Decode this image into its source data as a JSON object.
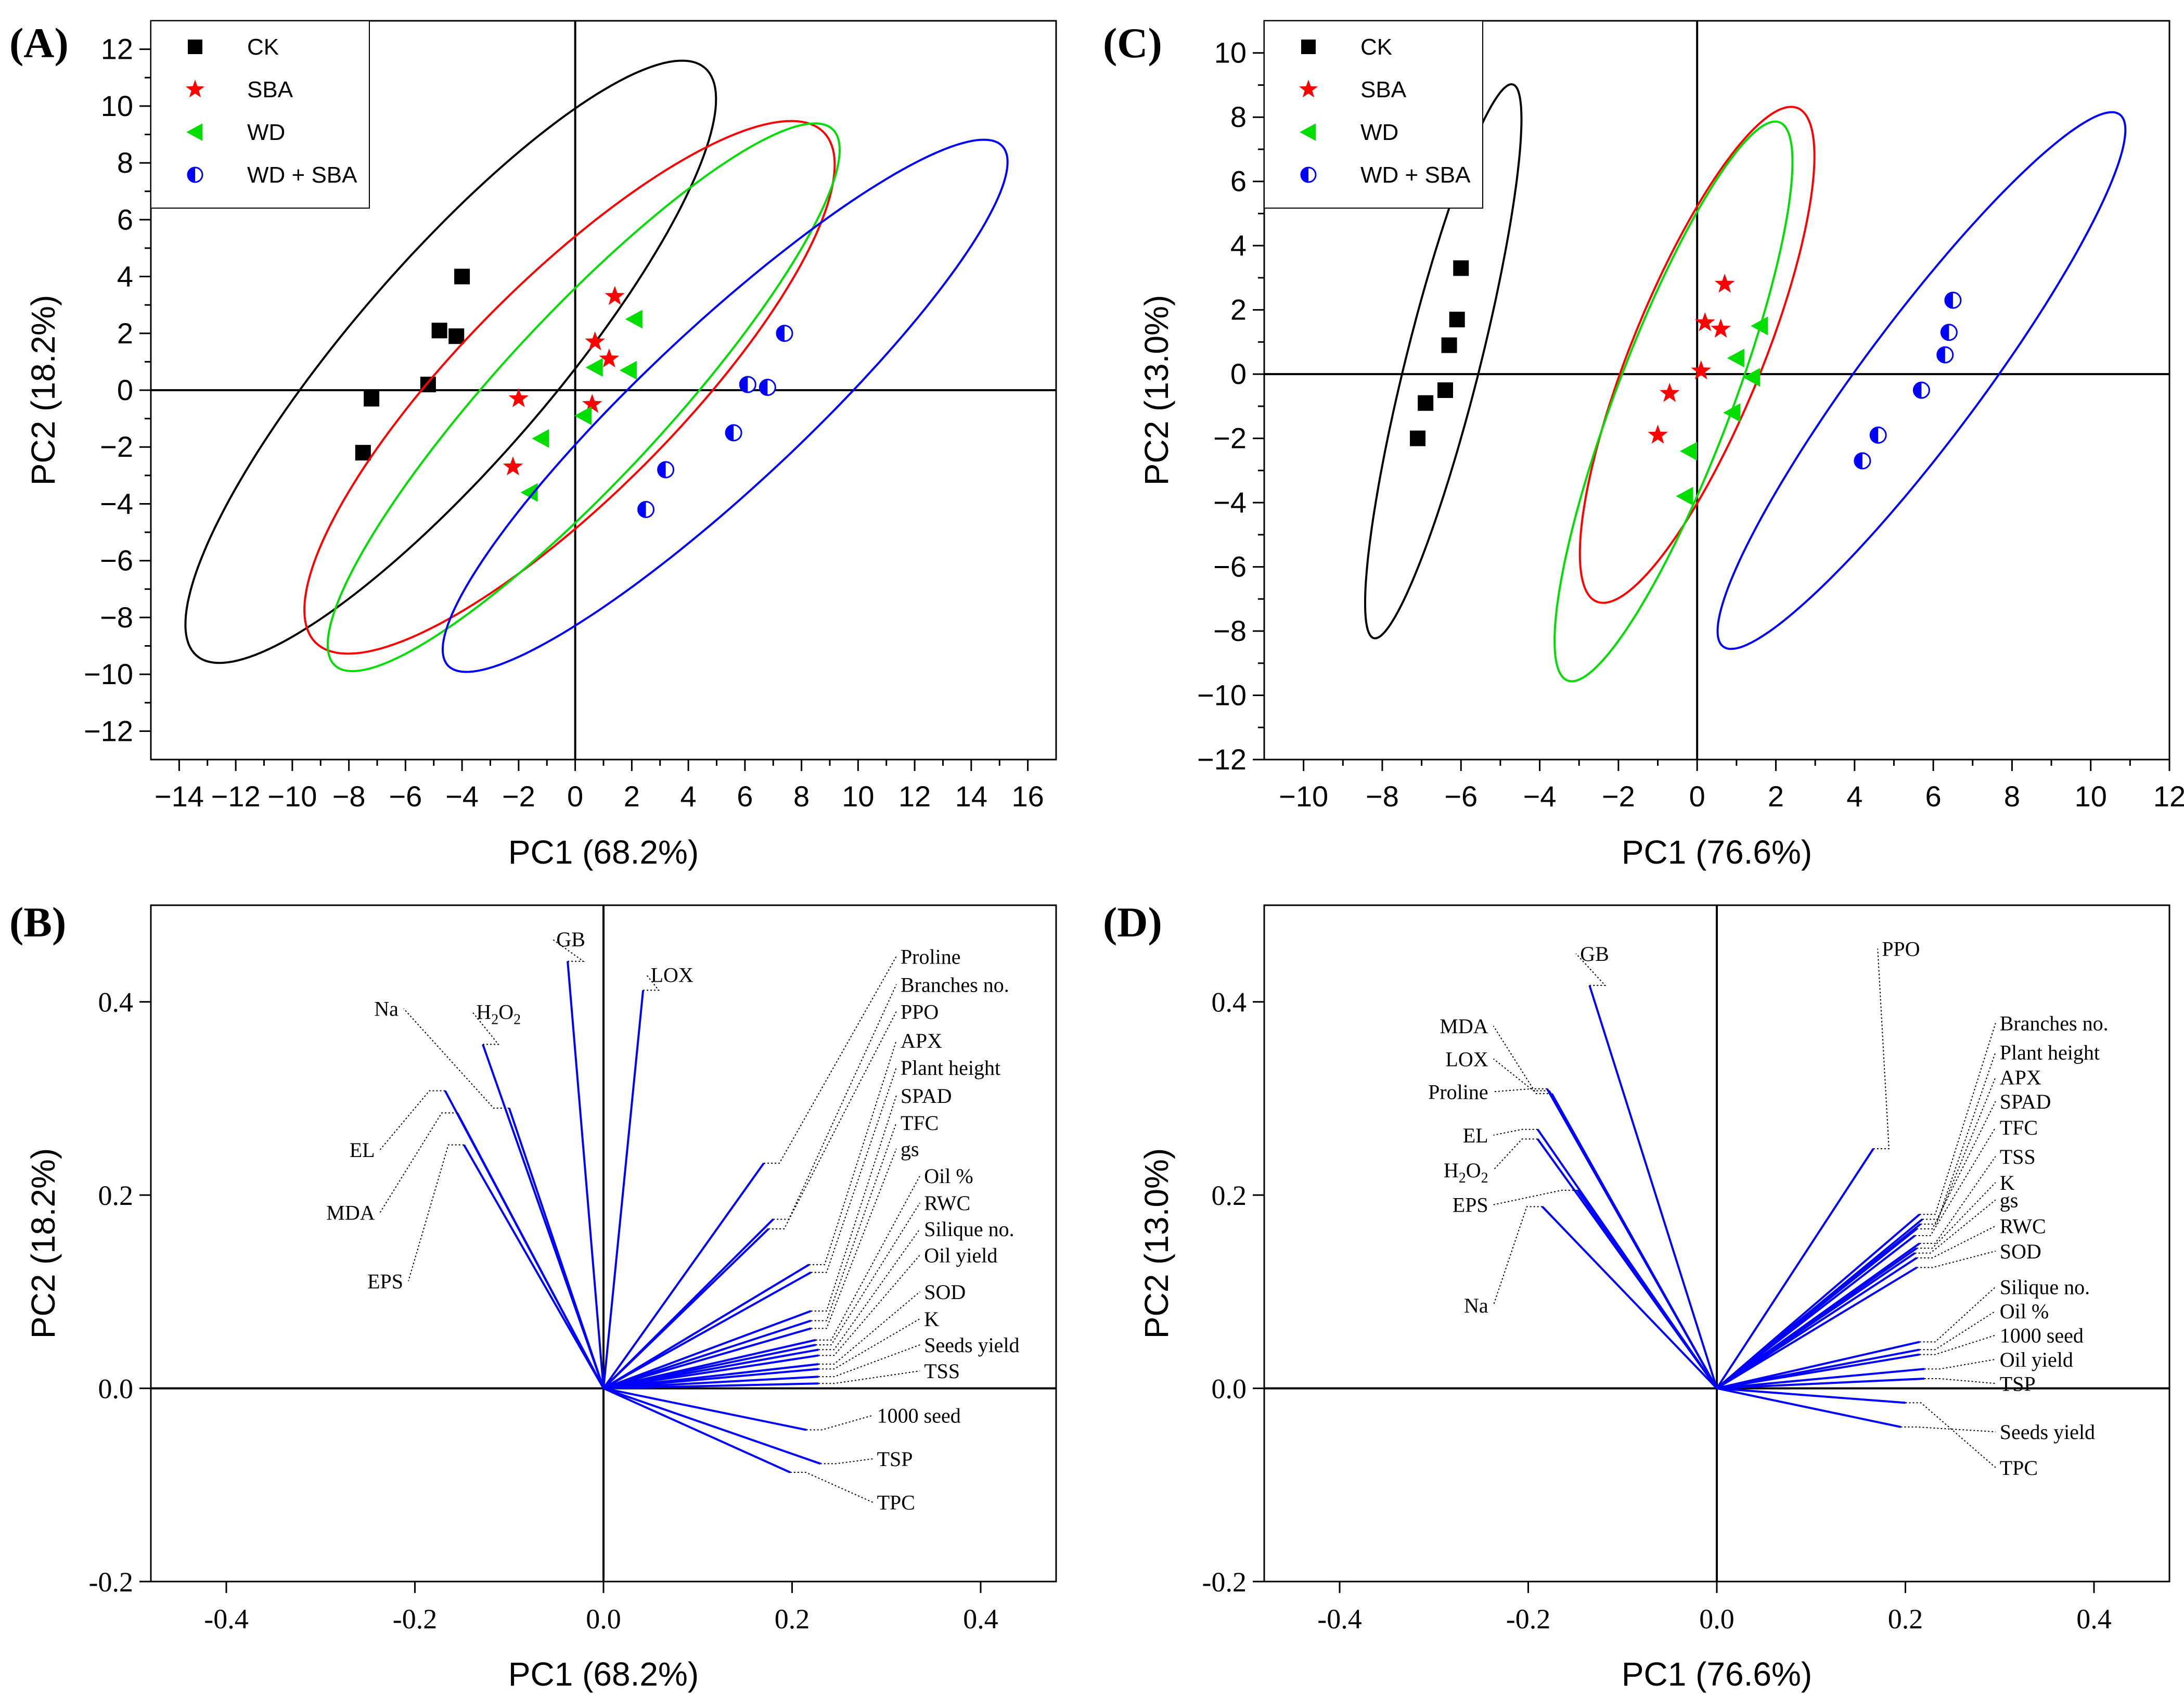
{
  "chart_data": [
    {
      "panel": "(A)",
      "type": "scatter",
      "xlabel": "PC1 (68.2%)",
      "ylabel": "PC2 (18.2%)",
      "xlim": [
        -15,
        17
      ],
      "ylim": [
        -13,
        13
      ],
      "xticks": [
        -14,
        -12,
        -10,
        -8,
        -6,
        -4,
        -2,
        0,
        2,
        4,
        6,
        8,
        10,
        12,
        14,
        16
      ],
      "yticks": [
        -12,
        -10,
        -8,
        -6,
        -4,
        -2,
        0,
        2,
        4,
        6,
        8,
        10,
        12
      ],
      "tick_labels_x": [
        "−14",
        "−12",
        "−10",
        "−8",
        "−6",
        "−4",
        "−2",
        "0",
        "2",
        "4",
        "6",
        "8",
        "10",
        "12",
        "14",
        "16"
      ],
      "tick_labels_y": [
        "−12",
        "−10",
        "−8",
        "−6",
        "−4",
        "−2",
        "0",
        "2",
        "4",
        "6",
        "8",
        "10",
        "12"
      ],
      "legend_position": "top-left",
      "series": [
        {
          "name": "CK",
          "color": "#000000",
          "marker": "square",
          "points": [
            [
              -7.5,
              -2.2
            ],
            [
              -7.2,
              -0.3
            ],
            [
              -5.2,
              0.2
            ],
            [
              -4.8,
              2.1
            ],
            [
              -4.2,
              1.9
            ],
            [
              -4.0,
              4.0
            ]
          ],
          "ellipse": {
            "center": [
              -4.4,
              1.0
            ],
            "angle_deg": 49,
            "semi_major": 13.7,
            "semi_minor": 3.55
          }
        },
        {
          "name": "SBA",
          "color": "#ff0000",
          "marker": "star",
          "points": [
            [
              -2.2,
              -2.7
            ],
            [
              -2.0,
              -0.3
            ],
            [
              0.6,
              -0.5
            ],
            [
              0.7,
              1.7
            ],
            [
              1.2,
              1.1
            ],
            [
              1.4,
              3.3
            ]
          ],
          "ellipse": {
            "center": [
              -0.2,
              0.1
            ],
            "angle_deg": 45,
            "semi_major": 12.7,
            "semi_minor": 3.8
          }
        },
        {
          "name": "WD",
          "color": "#00dd00",
          "marker": "triangle-left",
          "points": [
            [
              -1.6,
              -3.6
            ],
            [
              -1.2,
              -1.7
            ],
            [
              0.3,
              -0.9
            ],
            [
              0.7,
              0.8
            ],
            [
              1.9,
              0.7
            ],
            [
              2.1,
              2.5
            ]
          ],
          "ellipse": {
            "center": [
              0.3,
              -0.25
            ],
            "angle_deg": 47,
            "semi_major": 12.9,
            "semi_minor": 2.9
          }
        },
        {
          "name": "WD + SBA",
          "color": "#0000ff",
          "marker": "half-circle",
          "points": [
            [
              2.5,
              -4.2
            ],
            [
              3.2,
              -2.8
            ],
            [
              5.6,
              -1.5
            ],
            [
              6.1,
              0.2
            ],
            [
              6.8,
              0.1
            ],
            [
              7.4,
              2.0
            ]
          ],
          "ellipse": {
            "center": [
              5.3,
              -0.55
            ],
            "angle_deg": 43,
            "semi_major": 13.4,
            "semi_minor": 2.8
          }
        }
      ]
    },
    {
      "panel": "(C)",
      "type": "scatter",
      "xlabel": "PC1 (76.6%)",
      "ylabel": "PC2 (13.0%)",
      "xlim": [
        -11,
        12
      ],
      "ylim": [
        -12,
        11
      ],
      "xticks": [
        -10,
        -8,
        -6,
        -4,
        -2,
        0,
        2,
        4,
        6,
        8,
        10,
        12
      ],
      "yticks": [
        -12,
        -10,
        -8,
        -6,
        -4,
        -2,
        0,
        2,
        4,
        6,
        8,
        10
      ],
      "tick_labels_x": [
        "−10",
        "−8",
        "−6",
        "−4",
        "−2",
        "0",
        "2",
        "4",
        "6",
        "8",
        "10",
        "12"
      ],
      "tick_labels_y": [
        "−12",
        "−10",
        "−8",
        "−6",
        "−4",
        "−2",
        "0",
        "2",
        "4",
        "6",
        "8",
        "10"
      ],
      "legend_position": "top-left",
      "series": [
        {
          "name": "CK",
          "color": "#000000",
          "marker": "square",
          "points": [
            [
              -7.1,
              -2.0
            ],
            [
              -6.9,
              -0.9
            ],
            [
              -6.4,
              -0.5
            ],
            [
              -6.3,
              0.9
            ],
            [
              -6.1,
              1.7
            ],
            [
              -6.0,
              3.3
            ]
          ],
          "ellipse": {
            "center": [
              -6.45,
              0.4
            ],
            "angle_deg": 78.5,
            "semi_major": 8.8,
            "semi_minor": 0.95
          }
        },
        {
          "name": "SBA",
          "color": "#ff0000",
          "marker": "star",
          "points": [
            [
              -1.0,
              -1.9
            ],
            [
              -0.7,
              -0.6
            ],
            [
              0.1,
              0.1
            ],
            [
              0.2,
              1.6
            ],
            [
              0.6,
              1.4
            ],
            [
              0.7,
              2.8
            ]
          ],
          "ellipse": {
            "center": [
              0.0,
              0.6
            ],
            "angle_deg": 72,
            "semi_major": 8.1,
            "semi_minor": 1.7
          }
        },
        {
          "name": "WD",
          "color": "#00dd00",
          "marker": "triangle-left",
          "points": [
            [
              -0.3,
              -3.8
            ],
            [
              -0.2,
              -2.4
            ],
            [
              0.9,
              -1.2
            ],
            [
              1.0,
              0.5
            ],
            [
              1.4,
              -0.1
            ],
            [
              1.6,
              1.5
            ]
          ],
          "ellipse": {
            "center": [
              -0.6,
              -0.85
            ],
            "angle_deg": 73,
            "semi_major": 9.1,
            "semi_minor": 1.5
          }
        },
        {
          "name": "WD + SBA",
          "color": "#0000ff",
          "marker": "half-circle",
          "points": [
            [
              4.2,
              -2.7
            ],
            [
              4.6,
              -1.9
            ],
            [
              5.7,
              -0.5
            ],
            [
              6.3,
              0.6
            ],
            [
              6.4,
              1.3
            ],
            [
              6.5,
              2.3
            ]
          ],
          "ellipse": {
            "center": [
              5.7,
              -0.2
            ],
            "angle_deg": 59,
            "semi_major": 9.7,
            "semi_minor": 1.6
          }
        }
      ]
    },
    {
      "panel": "(B)",
      "type": "biplot-loadings",
      "xlabel": "PC1 (68.2%)",
      "ylabel": "PC2 (18.2%)",
      "xlim": [
        -0.48,
        0.48
      ],
      "ylim": [
        -0.2,
        0.5
      ],
      "xticks": [
        -0.4,
        -0.2,
        0.0,
        0.2,
        0.4
      ],
      "yticks": [
        -0.2,
        0.0,
        0.2,
        0.4
      ],
      "tick_labels_x": [
        "-0.4",
        "-0.2",
        "0.0",
        "0.2",
        "0.4"
      ],
      "tick_labels_y": [
        "-0.2",
        "0.0",
        "0.2",
        "0.4"
      ],
      "vectors": [
        {
          "name": "GB",
          "x": -0.038,
          "y": 0.442,
          "label_x": -0.05,
          "label_y": 0.465
        },
        {
          "name": "LOX",
          "x": 0.042,
          "y": 0.412,
          "label_x": 0.05,
          "label_y": 0.428
        },
        {
          "name": "Na",
          "x": -0.1,
          "y": 0.29,
          "label_x": -0.245,
          "label_y": 0.393
        },
        {
          "name": "H2O2",
          "x": -0.128,
          "y": 0.356,
          "label_x": -0.135,
          "label_y": 0.39
        },
        {
          "name": "EL",
          "x": -0.168,
          "y": 0.308,
          "label_x": -0.27,
          "label_y": 0.247
        },
        {
          "name": "MDA",
          "x": -0.155,
          "y": 0.285,
          "label_x": -0.27,
          "label_y": 0.182
        },
        {
          "name": "EPS",
          "x": -0.148,
          "y": 0.252,
          "label_x": -0.24,
          "label_y": 0.111
        },
        {
          "name": "Proline",
          "x": 0.17,
          "y": 0.233,
          "label_x": 0.315,
          "label_y": 0.447
        },
        {
          "name": "Branches no.",
          "x": 0.18,
          "y": 0.175,
          "label_x": 0.315,
          "label_y": 0.418
        },
        {
          "name": "PPO",
          "x": 0.175,
          "y": 0.165,
          "label_x": 0.315,
          "label_y": 0.39
        },
        {
          "name": "APX",
          "x": 0.218,
          "y": 0.128,
          "label_x": 0.315,
          "label_y": 0.36
        },
        {
          "name": "Plant height",
          "x": 0.22,
          "y": 0.12,
          "label_x": 0.315,
          "label_y": 0.332
        },
        {
          "name": "SPAD",
          "x": 0.22,
          "y": 0.08,
          "label_x": 0.315,
          "label_y": 0.303
        },
        {
          "name": "TFC",
          "x": 0.22,
          "y": 0.07,
          "label_x": 0.315,
          "label_y": 0.275
        },
        {
          "name": "gs",
          "x": 0.22,
          "y": 0.062,
          "label_x": 0.315,
          "label_y": 0.248
        },
        {
          "name": "Oil %",
          "x": 0.225,
          "y": 0.05,
          "label_x": 0.34,
          "label_y": 0.22
        },
        {
          "name": "RWC",
          "x": 0.225,
          "y": 0.045,
          "label_x": 0.34,
          "label_y": 0.192
        },
        {
          "name": "Silique no.",
          "x": 0.228,
          "y": 0.04,
          "label_x": 0.34,
          "label_y": 0.165
        },
        {
          "name": "Oil yield",
          "x": 0.228,
          "y": 0.034,
          "label_x": 0.34,
          "label_y": 0.138
        },
        {
          "name": "SOD",
          "x": 0.228,
          "y": 0.025,
          "label_x": 0.34,
          "label_y": 0.1
        },
        {
          "name": "K",
          "x": 0.228,
          "y": 0.02,
          "label_x": 0.34,
          "label_y": 0.072
        },
        {
          "name": "Seeds yield",
          "x": 0.228,
          "y": 0.012,
          "label_x": 0.34,
          "label_y": 0.045
        },
        {
          "name": "TSS",
          "x": 0.228,
          "y": 0.005,
          "label_x": 0.34,
          "label_y": 0.018
        },
        {
          "name": "1000 seed",
          "x": 0.215,
          "y": -0.043,
          "label_x": 0.29,
          "label_y": -0.028
        },
        {
          "name": "TSP",
          "x": 0.23,
          "y": -0.078,
          "label_x": 0.29,
          "label_y": -0.073
        },
        {
          "name": "TPC",
          "x": 0.198,
          "y": -0.087,
          "label_x": 0.29,
          "label_y": -0.118
        }
      ]
    },
    {
      "panel": "(D)",
      "type": "biplot-loadings",
      "xlabel": "PC1 (76.6%)",
      "ylabel": "PC2 (13.0%)",
      "xlim": [
        -0.48,
        0.48
      ],
      "ylim": [
        -0.2,
        0.5
      ],
      "xticks": [
        -0.4,
        -0.2,
        0.0,
        0.2,
        0.4
      ],
      "yticks": [
        -0.2,
        0.0,
        0.2,
        0.4
      ],
      "tick_labels_x": [
        "-0.4",
        "-0.2",
        "0.0",
        "0.2",
        "0.4"
      ],
      "tick_labels_y": [
        "-0.2",
        "0.0",
        "0.2",
        "0.4"
      ],
      "vectors": [
        {
          "name": "GB",
          "x": -0.135,
          "y": 0.417,
          "label_x": -0.145,
          "label_y": 0.45
        },
        {
          "name": "PPO",
          "x": 0.166,
          "y": 0.248,
          "label_x": 0.175,
          "label_y": 0.455
        },
        {
          "name": "MDA",
          "x": -0.175,
          "y": 0.305,
          "label_x": -0.27,
          "label_y": 0.375
        },
        {
          "name": "LOX",
          "x": -0.178,
          "y": 0.308,
          "label_x": -0.27,
          "label_y": 0.341
        },
        {
          "name": "Proline",
          "x": -0.18,
          "y": 0.31,
          "label_x": -0.27,
          "label_y": 0.307
        },
        {
          "name": "EL",
          "x": -0.19,
          "y": 0.268,
          "label_x": -0.27,
          "label_y": 0.262
        },
        {
          "name": "H2O2",
          "x": -0.19,
          "y": 0.258,
          "label_x": -0.27,
          "label_y": 0.226
        },
        {
          "name": "EPS",
          "x": -0.148,
          "y": 0.205,
          "label_x": -0.27,
          "label_y": 0.19
        },
        {
          "name": "Na",
          "x": -0.185,
          "y": 0.188,
          "label_x": -0.27,
          "label_y": 0.086
        },
        {
          "name": "Branches no.",
          "x": 0.215,
          "y": 0.18,
          "label_x": 0.3,
          "label_y": 0.378
        },
        {
          "name": "Plant height",
          "x": 0.218,
          "y": 0.175,
          "label_x": 0.3,
          "label_y": 0.348
        },
        {
          "name": "APX",
          "x": 0.216,
          "y": 0.17,
          "label_x": 0.3,
          "label_y": 0.322
        },
        {
          "name": "SPAD",
          "x": 0.212,
          "y": 0.165,
          "label_x": 0.3,
          "label_y": 0.297
        },
        {
          "name": "TFC",
          "x": 0.21,
          "y": 0.158,
          "label_x": 0.3,
          "label_y": 0.27
        },
        {
          "name": "TSS",
          "x": 0.215,
          "y": 0.15,
          "label_x": 0.3,
          "label_y": 0.24
        },
        {
          "name": "K",
          "x": 0.212,
          "y": 0.145,
          "label_x": 0.3,
          "label_y": 0.213
        },
        {
          "name": "gs",
          "x": 0.21,
          "y": 0.14,
          "label_x": 0.3,
          "label_y": 0.195
        },
        {
          "name": "RWC",
          "x": 0.212,
          "y": 0.135,
          "label_x": 0.3,
          "label_y": 0.168
        },
        {
          "name": "SOD",
          "x": 0.212,
          "y": 0.125,
          "label_x": 0.3,
          "label_y": 0.142
        },
        {
          "name": "Silique no.",
          "x": 0.215,
          "y": 0.048,
          "label_x": 0.3,
          "label_y": 0.105
        },
        {
          "name": "Oil %",
          "x": 0.215,
          "y": 0.04,
          "label_x": 0.3,
          "label_y": 0.08
        },
        {
          "name": "1000 seed",
          "x": 0.215,
          "y": 0.035,
          "label_x": 0.3,
          "label_y": 0.055
        },
        {
          "name": "Oil yield",
          "x": 0.22,
          "y": 0.02,
          "label_x": 0.3,
          "label_y": 0.03
        },
        {
          "name": "TSP",
          "x": 0.22,
          "y": 0.01,
          "label_x": 0.3,
          "label_y": 0.005
        },
        {
          "name": "Seeds yield",
          "x": 0.195,
          "y": -0.04,
          "label_x": 0.3,
          "label_y": -0.045
        },
        {
          "name": "TPC",
          "x": 0.2,
          "y": -0.015,
          "label_x": 0.3,
          "label_y": -0.082
        }
      ]
    }
  ],
  "colors": {
    "axis": "#000000",
    "vector": "#0000ff",
    "ck": "#000000",
    "sba": "#ff0000",
    "wd": "#00dd00",
    "wdsba": "#0000ff"
  }
}
